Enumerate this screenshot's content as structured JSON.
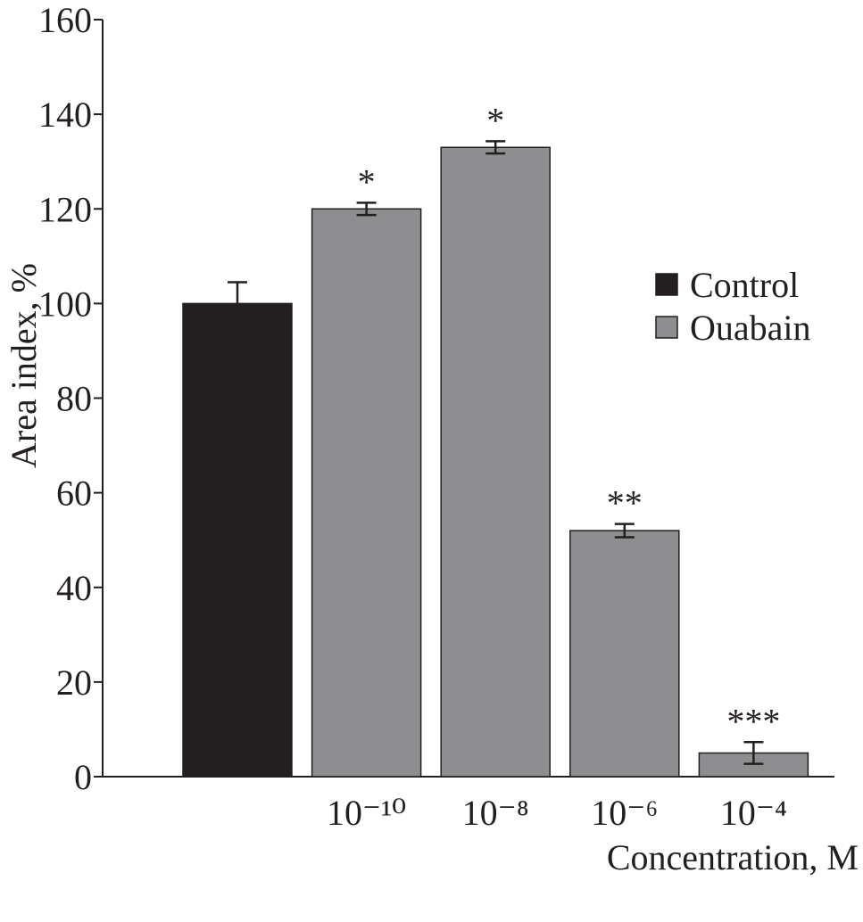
{
  "chart_data": {
    "type": "bar",
    "y_label": "Area index, %",
    "x_label": "Concentration, M",
    "categories": [
      null,
      "10⁻¹⁰",
      "10⁻⁸",
      "10⁻⁶",
      "10⁻⁴"
    ],
    "series": [
      {
        "name": "Control",
        "color": "#231f20",
        "values": [
          100,
          null,
          null,
          null,
          null
        ],
        "errors": [
          4.5,
          null,
          null,
          null,
          null
        ],
        "significance": [
          null,
          null,
          null,
          null,
          null
        ]
      },
      {
        "name": "Ouabain",
        "color": "#8e8e90",
        "values": [
          null,
          120,
          133,
          52,
          5
        ],
        "errors": [
          null,
          1.3,
          1.3,
          1.4,
          2.3
        ],
        "significance": [
          null,
          "*",
          "*",
          "**",
          "***"
        ]
      }
    ],
    "ylim": [
      0,
      160
    ],
    "yticks": [
      0,
      20,
      40,
      60,
      80,
      100,
      120,
      140,
      160
    ],
    "grid": false,
    "legend": "right"
  }
}
